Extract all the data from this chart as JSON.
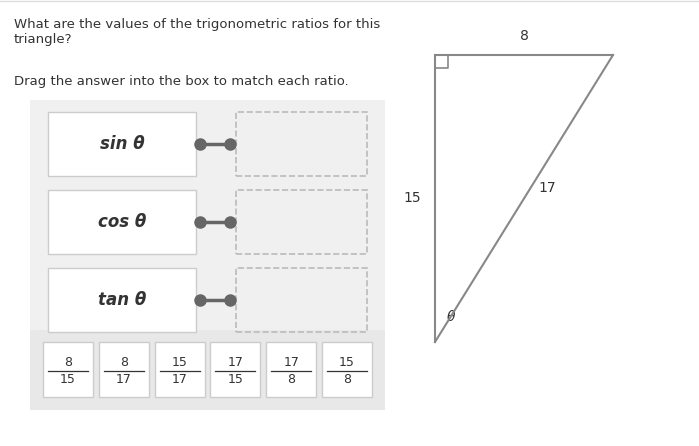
{
  "bg_color": "#ffffff",
  "question_line1": "What are the values of the trigonometric ratios for this",
  "question_line2": "triangle?",
  "drag_text": "Drag the answer into the box to match each ratio.",
  "ratios": [
    "sin θ",
    "cos θ",
    "tan θ"
  ],
  "answers_num": [
    "8",
    "8",
    "15",
    "17",
    "17",
    "15"
  ],
  "answers_den": [
    "15",
    "17",
    "17",
    "15",
    "8",
    "8"
  ],
  "side_top": "8",
  "side_left": "15",
  "side_hyp": "17",
  "angle_label": "θ",
  "panel_bg": "#f0f0f0",
  "answer_bg": "#e8e8e8",
  "box_edge": "#cccccc",
  "dashed_edge": "#bbbbbb",
  "connector_color": "#666666",
  "tri_color": "#888888",
  "text_color": "#333333"
}
